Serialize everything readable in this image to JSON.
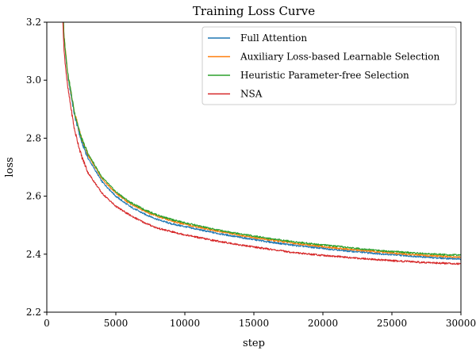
{
  "chart_data": {
    "type": "line",
    "title": "Training Loss Curve",
    "xlabel": "step",
    "ylabel": "loss",
    "xlim": [
      0,
      30000
    ],
    "ylim": [
      2.2,
      3.2
    ],
    "xticks": [
      0,
      5000,
      10000,
      15000,
      20000,
      25000,
      30000
    ],
    "yticks": [
      2.2,
      2.4,
      2.6,
      2.8,
      3.0,
      3.2
    ],
    "xtick_labels": [
      "0",
      "5000",
      "10000",
      "15000",
      "20000",
      "25000",
      "30000"
    ],
    "ytick_labels": [
      "2.2",
      "2.4",
      "2.6",
      "2.8",
      "3.0",
      "3.2"
    ],
    "grid": false,
    "legend_position": "top-right",
    "x": [
      1000,
      1250,
      1500,
      2000,
      2500,
      3000,
      4000,
      5000,
      6000,
      7000,
      8000,
      9000,
      10000,
      12000,
      14000,
      16000,
      18000,
      20000,
      22000,
      24000,
      26000,
      28000,
      30000
    ],
    "series": [
      {
        "name": "Full Attention",
        "color": "#1f77b4",
        "values": [
          3.45,
          3.15,
          3.02,
          2.88,
          2.79,
          2.73,
          2.65,
          2.6,
          2.565,
          2.54,
          2.52,
          2.505,
          2.495,
          2.475,
          2.458,
          2.443,
          2.43,
          2.42,
          2.41,
          2.402,
          2.395,
          2.388,
          2.383
        ]
      },
      {
        "name": "Auxiliary Loss-based Learnable Selection",
        "color": "#ff7f0e",
        "values": [
          3.45,
          3.15,
          3.03,
          2.89,
          2.8,
          2.74,
          2.66,
          2.61,
          2.575,
          2.55,
          2.53,
          2.515,
          2.503,
          2.483,
          2.465,
          2.45,
          2.437,
          2.426,
          2.416,
          2.408,
          2.4,
          2.394,
          2.39
        ]
      },
      {
        "name": "Heuristic Parameter-free Selection",
        "color": "#2ca02c",
        "values": [
          3.45,
          3.15,
          3.03,
          2.89,
          2.8,
          2.745,
          2.665,
          2.615,
          2.58,
          2.555,
          2.535,
          2.52,
          2.508,
          2.487,
          2.47,
          2.455,
          2.442,
          2.432,
          2.422,
          2.413,
          2.406,
          2.4,
          2.396
        ]
      },
      {
        "name": "NSA",
        "color": "#d62728",
        "values": [
          3.4,
          3.1,
          2.98,
          2.83,
          2.74,
          2.68,
          2.61,
          2.565,
          2.535,
          2.51,
          2.49,
          2.478,
          2.467,
          2.448,
          2.432,
          2.418,
          2.405,
          2.396,
          2.388,
          2.381,
          2.375,
          2.37,
          2.367
        ]
      }
    ]
  }
}
